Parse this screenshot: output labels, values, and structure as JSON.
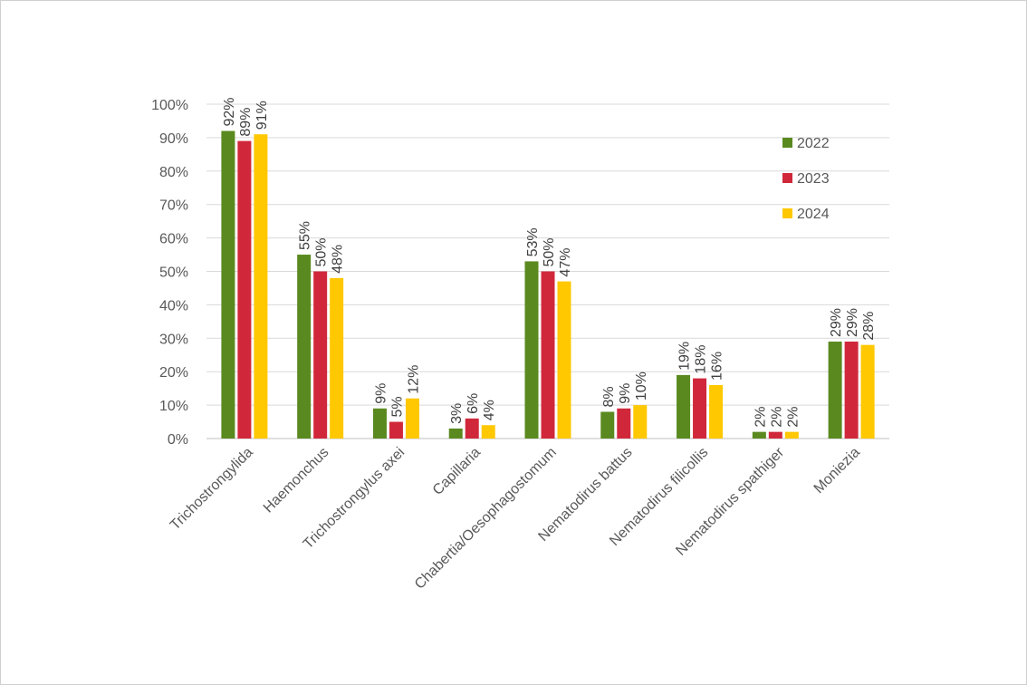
{
  "chart_data": {
    "type": "bar",
    "categories": [
      "Trichostrongylida",
      "Haemonchus",
      "Trichostrongylus axei",
      "Capillaria",
      "Chabertia/Oesophagostomum",
      "Nematodirus battus",
      "Nematodirus filicollis",
      "Nematodirus spathiger",
      "Moniezia"
    ],
    "series": [
      {
        "name": "2022",
        "color": "#5a8a1f",
        "values": [
          92,
          55,
          9,
          3,
          53,
          8,
          19,
          2,
          29
        ],
        "labels": [
          "92%",
          "55%",
          "9%",
          "3%",
          "53%",
          "8%",
          "19%",
          "2%",
          "29%"
        ]
      },
      {
        "name": "2023",
        "color": "#d0283a",
        "values": [
          89,
          50,
          5,
          6,
          50,
          9,
          18,
          2,
          29
        ],
        "labels": [
          "89%",
          "50%",
          "5%",
          "6%",
          "50%",
          "9%",
          "18%",
          "2%",
          "29%"
        ]
      },
      {
        "name": "2024",
        "color": "#ffc800",
        "values": [
          91,
          48,
          12,
          4,
          47,
          10,
          16,
          2,
          28
        ],
        "labels": [
          "91%",
          "48%",
          "12%",
          "4%",
          "47%",
          "10%",
          "16%",
          "2%",
          "28%"
        ]
      }
    ],
    "ylim": [
      0,
      100
    ],
    "yticks": [
      "0%",
      "10%",
      "20%",
      "30%",
      "40%",
      "50%",
      "60%",
      "70%",
      "80%",
      "90%",
      "100%"
    ],
    "grid": true,
    "legend": "top-right",
    "title": "",
    "xlabel": "",
    "ylabel": ""
  }
}
